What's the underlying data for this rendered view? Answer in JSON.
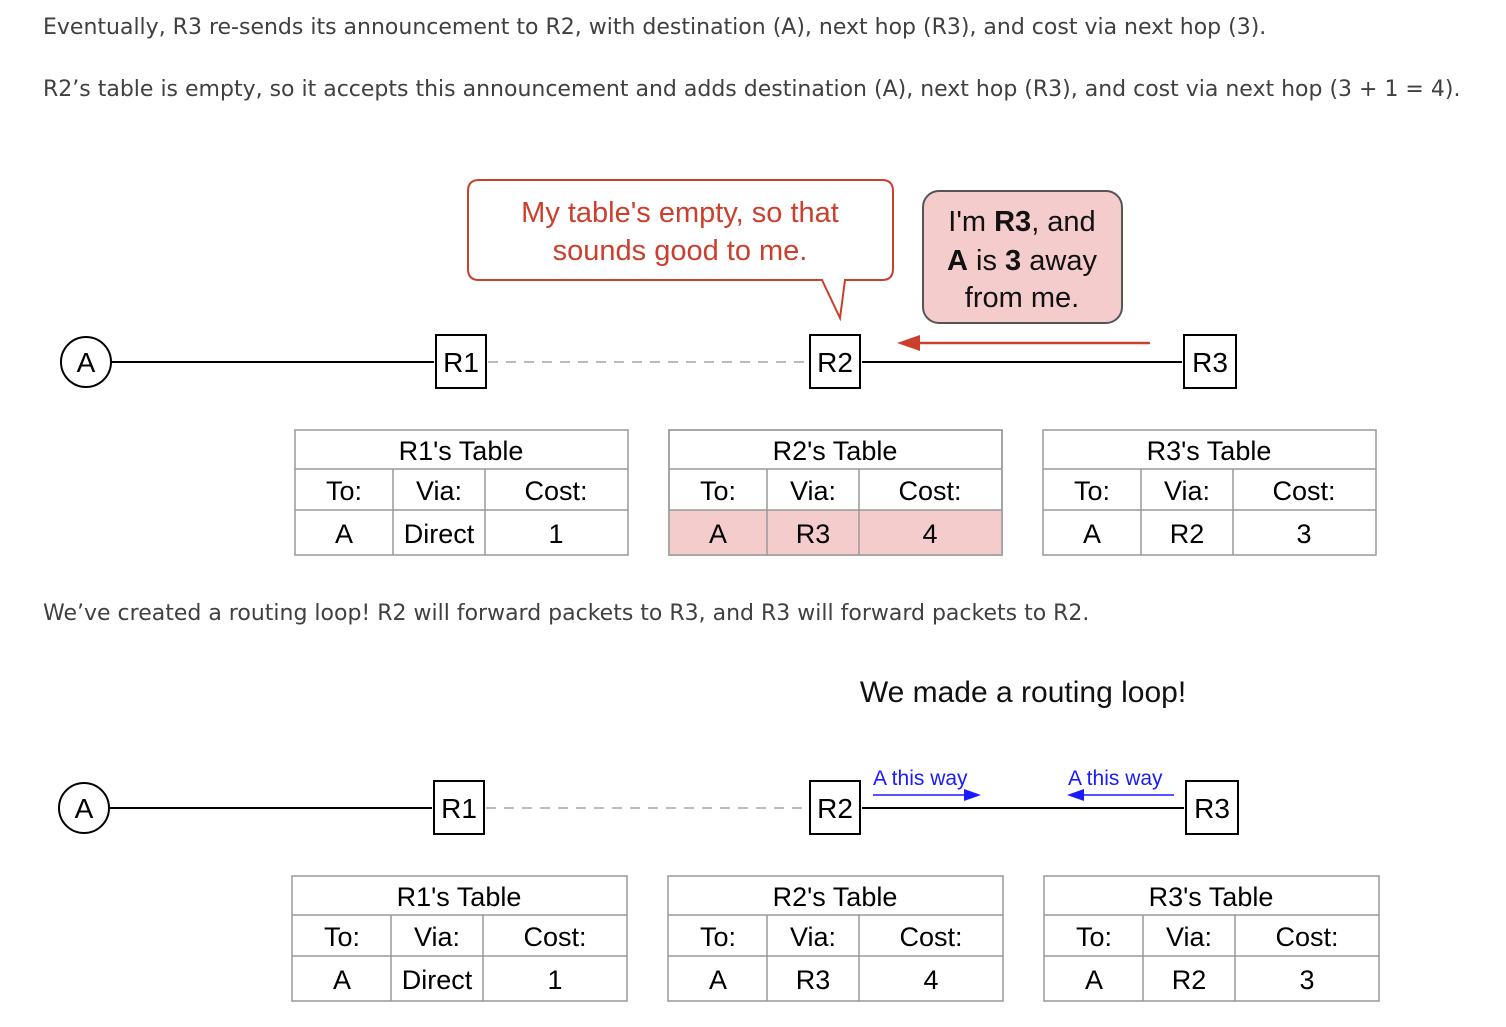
{
  "paragraphs": {
    "p1": "Eventually, R3 re-sends its announcement to R2, with destination (A), next hop (R3), and cost via next hop (3).",
    "p2": "R2’s table is empty, so it accepts this announcement and adds destination (A), next hop (R3), and cost via next hop (3 + 1 = 4).",
    "p3": "We’ve created a routing loop! R2 will forward packets to R3, and R3 will forward packets to R2."
  },
  "colors": {
    "accent_red": "#cc3f2d",
    "highlight_fill": "#f5cccc",
    "bubble_fill": "#f5cccc",
    "blue": "#1a1aff"
  },
  "diagram1": {
    "node_a": "A",
    "r1": "R1",
    "r2": "R2",
    "r3": "R3",
    "bubble_r2": [
      "My table's empty, so that",
      "sounds good to me."
    ],
    "bubble_r3": {
      "line1_pre": "I'm ",
      "line1_bold": "R3",
      "line1_post": ", and",
      "line2_bold_a": "A",
      "line2_mid": " is ",
      "line2_bold_num": "3",
      "line2_post": " away",
      "line3": "from me."
    },
    "tables": {
      "r1": {
        "title": "R1's Table",
        "headers": [
          "To:",
          "Via:",
          "Cost:"
        ],
        "row": [
          "A",
          "Direct",
          "1"
        ]
      },
      "r2": {
        "title": "R2's Table",
        "headers": [
          "To:",
          "Via:",
          "Cost:"
        ],
        "row": [
          "A",
          "R3",
          "4"
        ]
      },
      "r3": {
        "title": "R3's Table",
        "headers": [
          "To:",
          "Via:",
          "Cost:"
        ],
        "row": [
          "A",
          "R2",
          "3"
        ]
      }
    }
  },
  "diagram2": {
    "title": "We made a routing loop!",
    "node_a": "A",
    "r1": "R1",
    "r2": "R2",
    "r3": "R3",
    "label_r2": "A this way",
    "label_r3": "A this way",
    "tables": {
      "r1": {
        "title": "R1's Table",
        "headers": [
          "To:",
          "Via:",
          "Cost:"
        ],
        "row": [
          "A",
          "Direct",
          "1"
        ]
      },
      "r2": {
        "title": "R2's Table",
        "headers": [
          "To:",
          "Via:",
          "Cost:"
        ],
        "row": [
          "A",
          "R3",
          "4"
        ]
      },
      "r3": {
        "title": "R3's Table",
        "headers": [
          "To:",
          "Via:",
          "Cost:"
        ],
        "row": [
          "A",
          "R2",
          "3"
        ]
      }
    }
  }
}
